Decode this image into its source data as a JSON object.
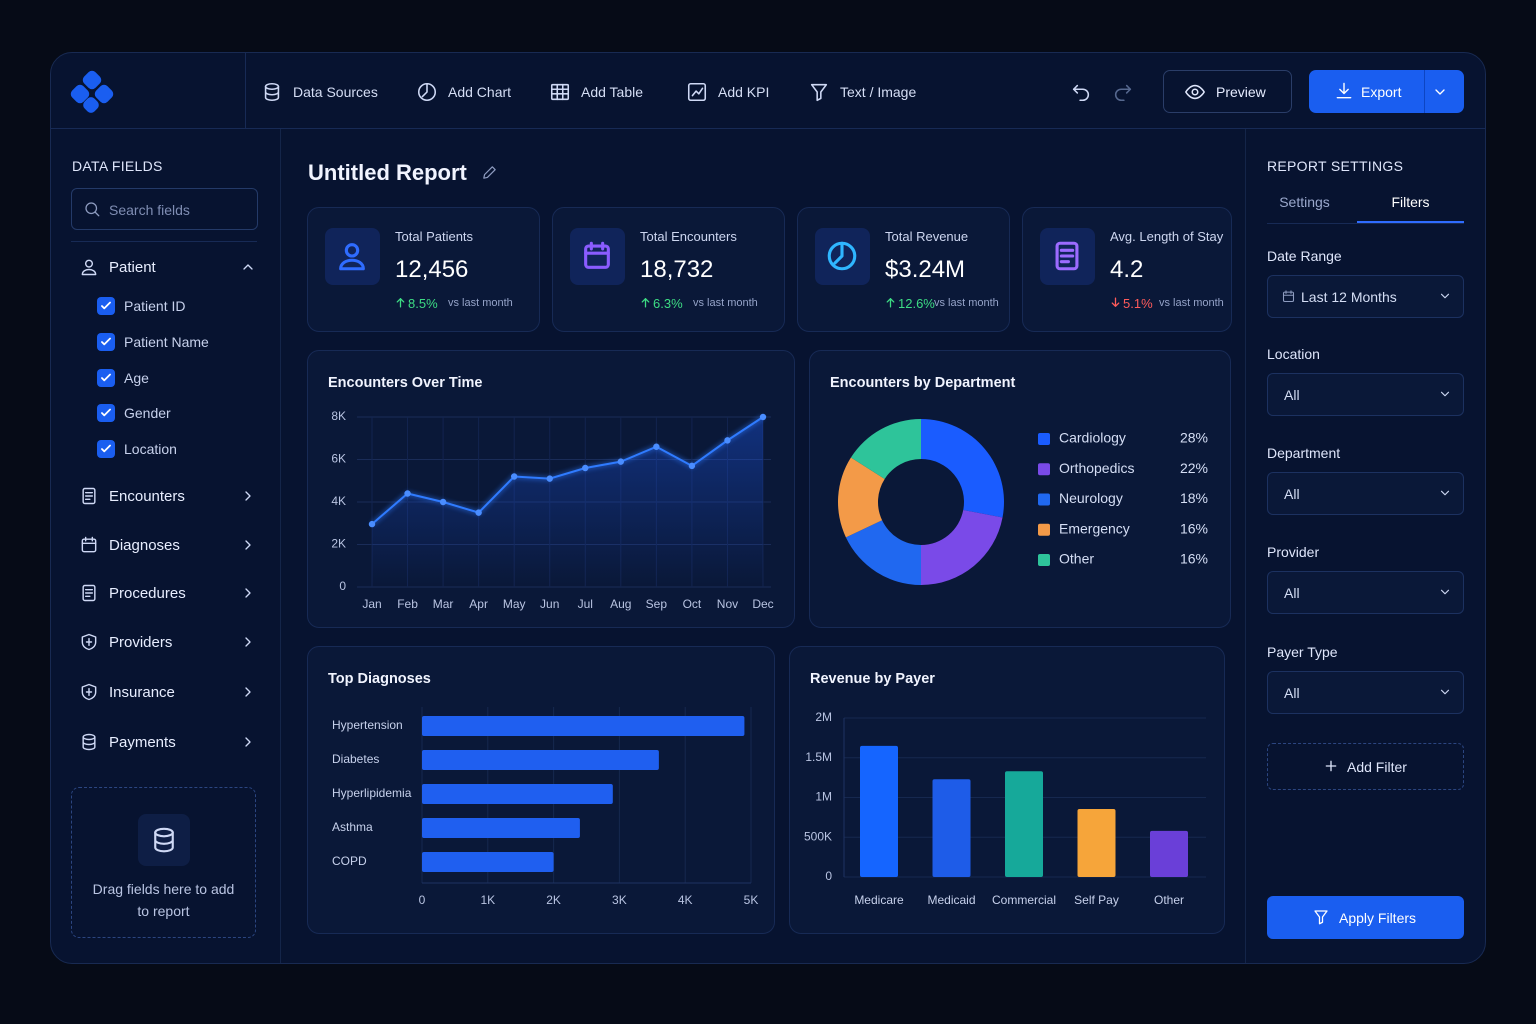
{
  "toolbar": {
    "items": [
      "Data Sources",
      "Add Chart",
      "Add Table",
      "Add KPI",
      "Text / Image"
    ],
    "preview": "Preview",
    "export": "Export"
  },
  "sidebar": {
    "title": "DATA FIELDS",
    "search_placeholder": "Search fields",
    "expanded_group": {
      "name": "Patient",
      "fields": [
        "Patient ID",
        "Patient Name",
        "Age",
        "Gender",
        "Location"
      ]
    },
    "groups": [
      "Encounters",
      "Diagnoses",
      "Procedures",
      "Providers",
      "Insurance",
      "Payments"
    ],
    "drop_hint": "Drag fields here to add to report"
  },
  "report": {
    "title": "Untitled Report"
  },
  "kpis": [
    {
      "label": "Total Patients",
      "value": "12,456",
      "change": "8.5%",
      "trend": "up",
      "note": "vs last month"
    },
    {
      "label": "Total Encounters",
      "value": "18,732",
      "change": "6.3%",
      "trend": "up",
      "note": "vs last month"
    },
    {
      "label": "Total Revenue",
      "value": "$3.24M",
      "change": "12.6%",
      "trend": "up",
      "note": "vs last month"
    },
    {
      "label": "Avg. Length of Stay",
      "value": "4.2",
      "change": "5.1%",
      "trend": "down",
      "note": "vs last month"
    }
  ],
  "chart_data": [
    {
      "type": "line",
      "title": "Encounters Over Time",
      "categories": [
        "Jan",
        "Feb",
        "Mar",
        "Apr",
        "May",
        "Jun",
        "Jul",
        "Aug",
        "Sep",
        "Oct",
        "Nov",
        "Dec"
      ],
      "values": [
        2960,
        4400,
        4000,
        3500,
        5200,
        5100,
        5600,
        5900,
        6600,
        5700,
        6900,
        8000
      ],
      "color": "#2f7bff",
      "ylim": [
        0,
        8000
      ],
      "yticks": [
        0,
        {
          "value": 2000,
          "label": "2K"
        },
        {
          "value": 4000,
          "label": "4K"
        },
        {
          "value": 6000,
          "label": "6K"
        },
        {
          "value": 8000,
          "label": "8K"
        }
      ],
      "grid": true
    },
    {
      "type": "donut",
      "title": "Encounters by Department",
      "categories": [
        "Cardiology",
        "Orthopedics",
        "Neurology",
        "Emergency",
        "Other"
      ],
      "values": [
        28,
        22,
        18,
        16,
        16
      ],
      "value_labels": [
        "28%",
        "22%",
        "18%",
        "16%",
        "16%"
      ],
      "colors": [
        "#1a5cff",
        "#7a4ae8",
        "#2068f0",
        "#f39a48",
        "#2ec49a"
      ]
    },
    {
      "type": "hbar",
      "title": "Top Diagnoses",
      "categories": [
        "Hypertension",
        "Diabetes",
        "Hyperlipidemia",
        "Asthma",
        "COPD"
      ],
      "values": [
        4900,
        3600,
        2900,
        2400,
        2000
      ],
      "color": "#1f5ff0",
      "xlim": [
        0,
        5000
      ],
      "xticks": [
        0,
        {
          "value": 1000,
          "label": "1K"
        },
        {
          "value": 2000,
          "label": "2K"
        },
        {
          "value": 3000,
          "label": "3K"
        },
        {
          "value": 4000,
          "label": "4K"
        },
        {
          "value": 5000,
          "label": "5K"
        }
      ],
      "grid": true
    },
    {
      "type": "bar",
      "title": "Revenue by Payer",
      "categories": [
        "Medicare",
        "Medicaid",
        "Commercial",
        "Self Pay",
        "Other"
      ],
      "values": [
        1650000,
        1230000,
        1330000,
        855000,
        580000
      ],
      "colors": [
        "#1565ff",
        "#1e5ce8",
        "#16a99a",
        "#f6a53a",
        "#6a3fd8"
      ],
      "ylim": [
        0,
        2000000
      ],
      "yticks": [
        0,
        {
          "value": 500000,
          "label": "500K"
        },
        {
          "value": 1000000,
          "label": "1M"
        },
        {
          "value": 1500000,
          "label": "1.5M"
        },
        {
          "value": 2000000,
          "label": "2M"
        }
      ],
      "grid": true
    }
  ],
  "settings": {
    "title": "REPORT SETTINGS",
    "tabs": [
      "Settings",
      "Filters"
    ],
    "active_tab": 1,
    "filters": [
      {
        "label": "Date Range",
        "value": "Last 12 Months"
      },
      {
        "label": "Location",
        "value": "All"
      },
      {
        "label": "Department",
        "value": "All"
      },
      {
        "label": "Provider",
        "value": "All"
      },
      {
        "label": "Payer Type",
        "value": "All"
      }
    ],
    "add_filter": "Add Filter",
    "apply": "Apply Filters"
  }
}
